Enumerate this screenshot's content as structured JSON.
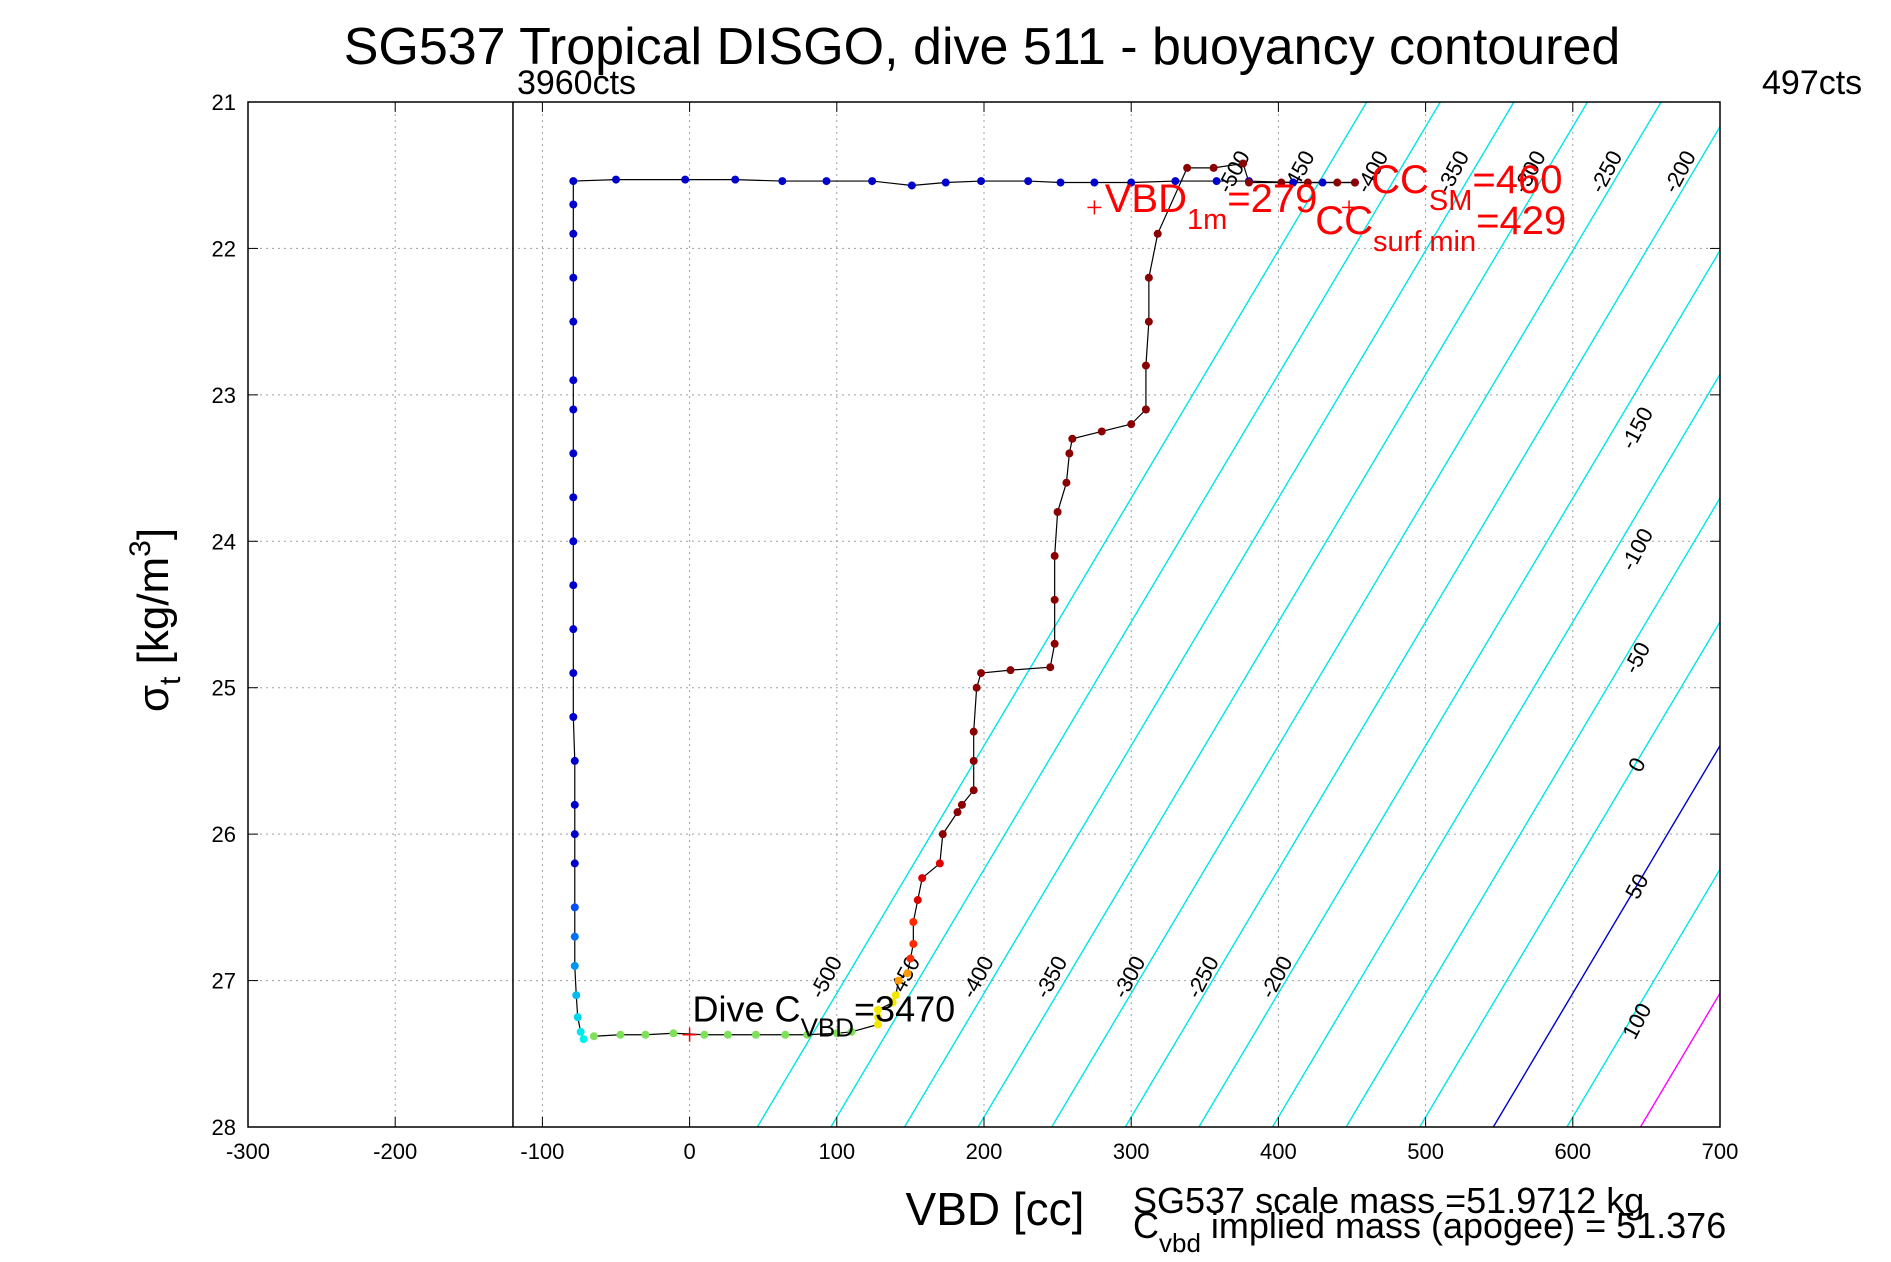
{
  "chart_data": {
    "type": "scatter",
    "title": "SG537 Tropical DISGO, dive 511 - buoyancy contoured",
    "xlabel": "VBD [cc]",
    "ylabel": {
      "main": "σ",
      "sub": "t",
      "unit": " [kg/m",
      "sup": "3",
      "close": "]"
    },
    "xlim": [
      -300,
      700
    ],
    "ylim": [
      21,
      28
    ],
    "y_reversed": true,
    "grid": true,
    "x_ticks": [
      -300,
      -200,
      -100,
      0,
      100,
      200,
      300,
      400,
      500,
      600,
      700
    ],
    "y_ticks": [
      21,
      22,
      23,
      24,
      25,
      26,
      27,
      28
    ],
    "x_tick_labels": [
      "-300",
      "-200",
      "-100",
      "0",
      "100",
      "200",
      "300",
      "400",
      "500",
      "600",
      "700"
    ],
    "y_tick_labels": [
      "21",
      "22",
      "23",
      "24",
      "25",
      "26",
      "27",
      "28"
    ],
    "vlines": [
      {
        "x": -120,
        "label": "3960cts",
        "color": "#000000"
      }
    ],
    "top_right_label": "497cts",
    "contours": [
      {
        "level": -500,
        "label": "-500",
        "color": "#00e5e5",
        "pts": [
          [
            46,
            28
          ],
          [
            460,
            21
          ]
        ]
      },
      {
        "level": -450,
        "label": "-450",
        "color": "#00e5e5",
        "pts": [
          [
            96,
            28
          ],
          [
            510,
            21
          ]
        ]
      },
      {
        "level": -400,
        "label": "-400",
        "color": "#00e5e5",
        "pts": [
          [
            146,
            28
          ],
          [
            560,
            21
          ]
        ]
      },
      {
        "level": -350,
        "label": "-350",
        "color": "#00e5e5",
        "pts": [
          [
            196,
            28
          ],
          [
            610,
            21
          ]
        ]
      },
      {
        "level": -300,
        "label": "-300",
        "color": "#00e5e5",
        "pts": [
          [
            246,
            28
          ],
          [
            660,
            21
          ]
        ]
      },
      {
        "level": -250,
        "label": "-250",
        "color": "#00e5e5",
        "pts": [
          [
            296,
            28
          ],
          [
            710,
            21
          ]
        ]
      },
      {
        "level": -200,
        "label": "-200",
        "color": "#00e5e5",
        "pts": [
          [
            346,
            28
          ],
          [
            760,
            21
          ]
        ]
      },
      {
        "level": -150,
        "label": "-150",
        "color": "#00e5e5",
        "pts": [
          [
            396,
            28
          ],
          [
            810,
            21
          ]
        ]
      },
      {
        "level": -100,
        "label": "-100",
        "color": "#00e5e5",
        "pts": [
          [
            446,
            28
          ],
          [
            860,
            21
          ]
        ]
      },
      {
        "level": -50,
        "label": "-50",
        "color": "#00e5e5",
        "pts": [
          [
            496,
            28
          ],
          [
            910,
            21
          ]
        ]
      },
      {
        "level": 0,
        "label": "0",
        "color": "#0000cc",
        "pts": [
          [
            546,
            28
          ],
          [
            960,
            21
          ]
        ]
      },
      {
        "level": 50,
        "label": "50",
        "color": "#00e5e5",
        "pts": [
          [
            596,
            28
          ],
          [
            1010,
            21
          ]
        ]
      },
      {
        "level": 100,
        "label": "100",
        "color": "#ff00ff",
        "pts": [
          [
            646,
            28
          ],
          [
            1060,
            21
          ]
        ]
      }
    ],
    "contour_labels": [
      {
        "text": "-500",
        "x": 97,
        "y": 27.0
      },
      {
        "text": "-450",
        "x": 150,
        "y": 27.0
      },
      {
        "text": "-400",
        "x": 200,
        "y": 27.0
      },
      {
        "text": "-350",
        "x": 250,
        "y": 27.0
      },
      {
        "text": "-300",
        "x": 303,
        "y": 27.0
      },
      {
        "text": "-250",
        "x": 353,
        "y": 27.0
      },
      {
        "text": "-200",
        "x": 403,
        "y": 27.0
      },
      {
        "text": "-500",
        "x": 374,
        "y": 21.5
      },
      {
        "text": "-450",
        "x": 418,
        "y": 21.5
      },
      {
        "text": "-400",
        "x": 468,
        "y": 21.5
      },
      {
        "text": "-350",
        "x": 523,
        "y": 21.5
      },
      {
        "text": "-300",
        "x": 575,
        "y": 21.5
      },
      {
        "text": "-250",
        "x": 627,
        "y": 21.5
      },
      {
        "text": "-200",
        "x": 677,
        "y": 21.5
      },
      {
        "text": "-150",
        "x": 648,
        "y": 23.25
      },
      {
        "text": "-100",
        "x": 648,
        "y": 24.08
      },
      {
        "text": "-50",
        "x": 648,
        "y": 24.82
      },
      {
        "text": "0",
        "x": 648,
        "y": 25.55
      },
      {
        "text": "50",
        "x": 648,
        "y": 26.38
      },
      {
        "text": "100",
        "x": 648,
        "y": 27.3
      }
    ],
    "series": [
      {
        "name": "",
        "points": [
          [
            -72,
            27.4
          ],
          [
            -74,
            27.35
          ],
          [
            -76,
            27.25
          ],
          [
            -77,
            27.1
          ],
          [
            -78,
            26.9
          ],
          [
            -78,
            26.7
          ],
          [
            -78,
            26.5
          ],
          [
            -78,
            26.2
          ],
          [
            -78,
            26.0
          ],
          [
            -78,
            25.8
          ],
          [
            -78,
            25.5
          ],
          [
            -79,
            25.2
          ],
          [
            -79,
            24.9
          ],
          [
            -79,
            24.6
          ],
          [
            -79,
            24.3
          ],
          [
            -79,
            24.0
          ],
          [
            -79,
            23.7
          ],
          [
            -79,
            23.4
          ],
          [
            -79,
            23.1
          ],
          [
            -79,
            22.9
          ],
          [
            -79,
            22.5
          ],
          [
            -79,
            22.2
          ],
          [
            -79,
            21.9
          ],
          [
            -79,
            21.7
          ],
          [
            -79,
            21.54
          ],
          [
            -50,
            21.53
          ],
          [
            -3,
            21.53
          ],
          [
            31,
            21.53
          ],
          [
            63,
            21.54
          ],
          [
            93,
            21.54
          ],
          [
            124,
            21.54
          ],
          [
            151,
            21.57
          ],
          [
            174,
            21.55
          ],
          [
            198,
            21.54
          ],
          [
            230,
            21.54
          ],
          [
            252,
            21.55
          ],
          [
            275,
            21.55
          ],
          [
            300,
            21.55
          ],
          [
            330,
            21.54
          ],
          [
            358,
            21.54
          ],
          [
            380,
            21.54
          ],
          [
            410,
            21.55
          ],
          [
            430,
            21.55
          ],
          [
            452,
            21.55
          ]
        ],
        "colors": "blue"
      },
      {
        "name": "",
        "points": [
          [
            -65,
            27.38
          ],
          [
            -47,
            27.37
          ],
          [
            -30,
            27.37
          ],
          [
            -11,
            27.36
          ],
          [
            10,
            27.37
          ],
          [
            26,
            27.37
          ],
          [
            45,
            27.37
          ],
          [
            65,
            27.37
          ],
          [
            80,
            27.37
          ],
          [
            100,
            27.36
          ],
          [
            110,
            27.35
          ]
        ],
        "colors": "green"
      },
      {
        "name": "",
        "points": [
          [
            128,
            27.3
          ],
          [
            128,
            27.25
          ],
          [
            128,
            27.2
          ],
          [
            138,
            27.15
          ],
          [
            140,
            27.1
          ],
          [
            142,
            27.0
          ],
          [
            148,
            26.95
          ],
          [
            150,
            26.85
          ],
          [
            152,
            26.75
          ],
          [
            152,
            26.6
          ],
          [
            155,
            26.45
          ],
          [
            158,
            26.3
          ],
          [
            170,
            26.2
          ],
          [
            172,
            26.0
          ],
          [
            182,
            25.85
          ],
          [
            185,
            25.8
          ],
          [
            193,
            25.7
          ],
          [
            193,
            25.5
          ],
          [
            193,
            25.3
          ],
          [
            195,
            25.0
          ],
          [
            198,
            24.9
          ],
          [
            218,
            24.88
          ],
          [
            245,
            24.86
          ],
          [
            248,
            24.7
          ],
          [
            248,
            24.4
          ],
          [
            248,
            24.1
          ],
          [
            250,
            23.8
          ],
          [
            256,
            23.6
          ],
          [
            258,
            23.4
          ],
          [
            260,
            23.3
          ],
          [
            280,
            23.25
          ],
          [
            300,
            23.2
          ],
          [
            310,
            23.1
          ],
          [
            310,
            22.8
          ],
          [
            312,
            22.5
          ],
          [
            312,
            22.2
          ],
          [
            318,
            21.9
          ],
          [
            338,
            21.45
          ],
          [
            356,
            21.45
          ],
          [
            376,
            21.42
          ],
          [
            380,
            21.55
          ],
          [
            402,
            21.55
          ],
          [
            420,
            21.55
          ],
          [
            440,
            21.55
          ],
          [
            452,
            21.55
          ]
        ],
        "colors": "warm"
      }
    ],
    "markers": [
      {
        "type": "red-plus",
        "x": 275,
        "y": 21.72
      },
      {
        "type": "red-plus",
        "x": 448,
        "y": 21.72
      },
      {
        "type": "red-plus",
        "x": 0,
        "y": 27.37
      }
    ],
    "annotations": [
      {
        "kind": "vbd1m",
        "main": "VBD",
        "sub": "1m",
        "tail": "=279"
      },
      {
        "kind": "ccsm",
        "main": "CC",
        "sub": "SM",
        "tail": "=460"
      },
      {
        "kind": "ccsurf",
        "main": "CC",
        "sub": "surf min",
        "tail": "=429"
      },
      {
        "kind": "divec",
        "main": "Dive C",
        "sub": "VBD",
        "tail": "=3470"
      }
    ],
    "footer": {
      "scale_mass": "SG537 scale mass =51.9712 kg",
      "cvbd_main": "C",
      "cvbd_sub": "vbd",
      "cvbd_tail": " implied mass (apogee) = 51.376"
    },
    "colors": {
      "contour": "#00e5e5",
      "zero": "#0000cc",
      "pos": "#ff00ff",
      "annotation": "#ff0000",
      "trace": "#000000"
    }
  }
}
